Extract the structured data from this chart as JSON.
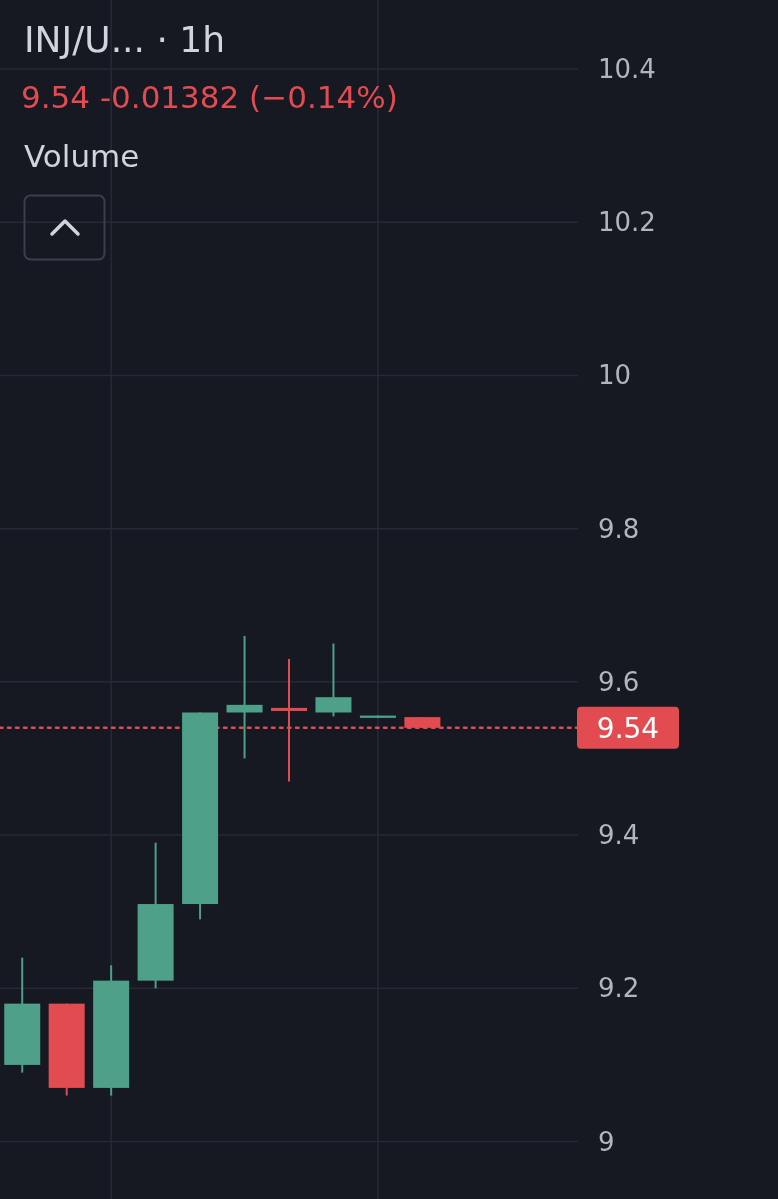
{
  "chart_data": {
    "type": "candlestick",
    "title": "INJ/U... · 1h",
    "subtitle": "9.54 -0.01382 (−0.14%)",
    "annotations": [
      "Volume"
    ],
    "categories": [
      null,
      null,
      null,
      null,
      null,
      null,
      null,
      null,
      null,
      null,
      null,
      null,
      null
    ],
    "ohlc": [
      [
        9.1,
        9.24,
        9.09,
        9.18
      ],
      [
        9.18,
        9.18,
        9.06,
        9.07
      ],
      [
        9.07,
        9.23,
        9.06,
        9.21
      ],
      [
        9.21,
        9.39,
        9.2,
        9.31
      ],
      [
        9.31,
        9.56,
        9.29,
        9.56
      ],
      [
        9.56,
        9.66,
        9.5,
        9.57
      ],
      [
        9.566,
        9.63,
        9.47,
        9.562
      ],
      [
        9.56,
        9.65,
        9.555,
        9.58
      ],
      [
        9.553,
        9.556,
        9.553,
        9.556
      ],
      [
        9.554,
        9.554,
        9.54,
        9.54
      ],
      null,
      null,
      null
    ],
    "colors": [
      "#4ea088",
      "#e24b50",
      "#4ea088",
      "#4ea088",
      "#4ea088",
      "#4ea088",
      "#e24b50",
      "#4ea088",
      "#4ea088",
      "#e24b50",
      null,
      null,
      null
    ],
    "ylim": [
      8.925,
      10.49
    ],
    "yticks": [
      9,
      9.2,
      9.4,
      9.6,
      9.8,
      10,
      10.2,
      10.4
    ],
    "grid": true,
    "ref_lines": [
      {
        "axis": "y",
        "value": 9.54,
        "label": "9.54",
        "color": "#e24b50",
        "line_style": "dotted"
      }
    ]
  }
}
